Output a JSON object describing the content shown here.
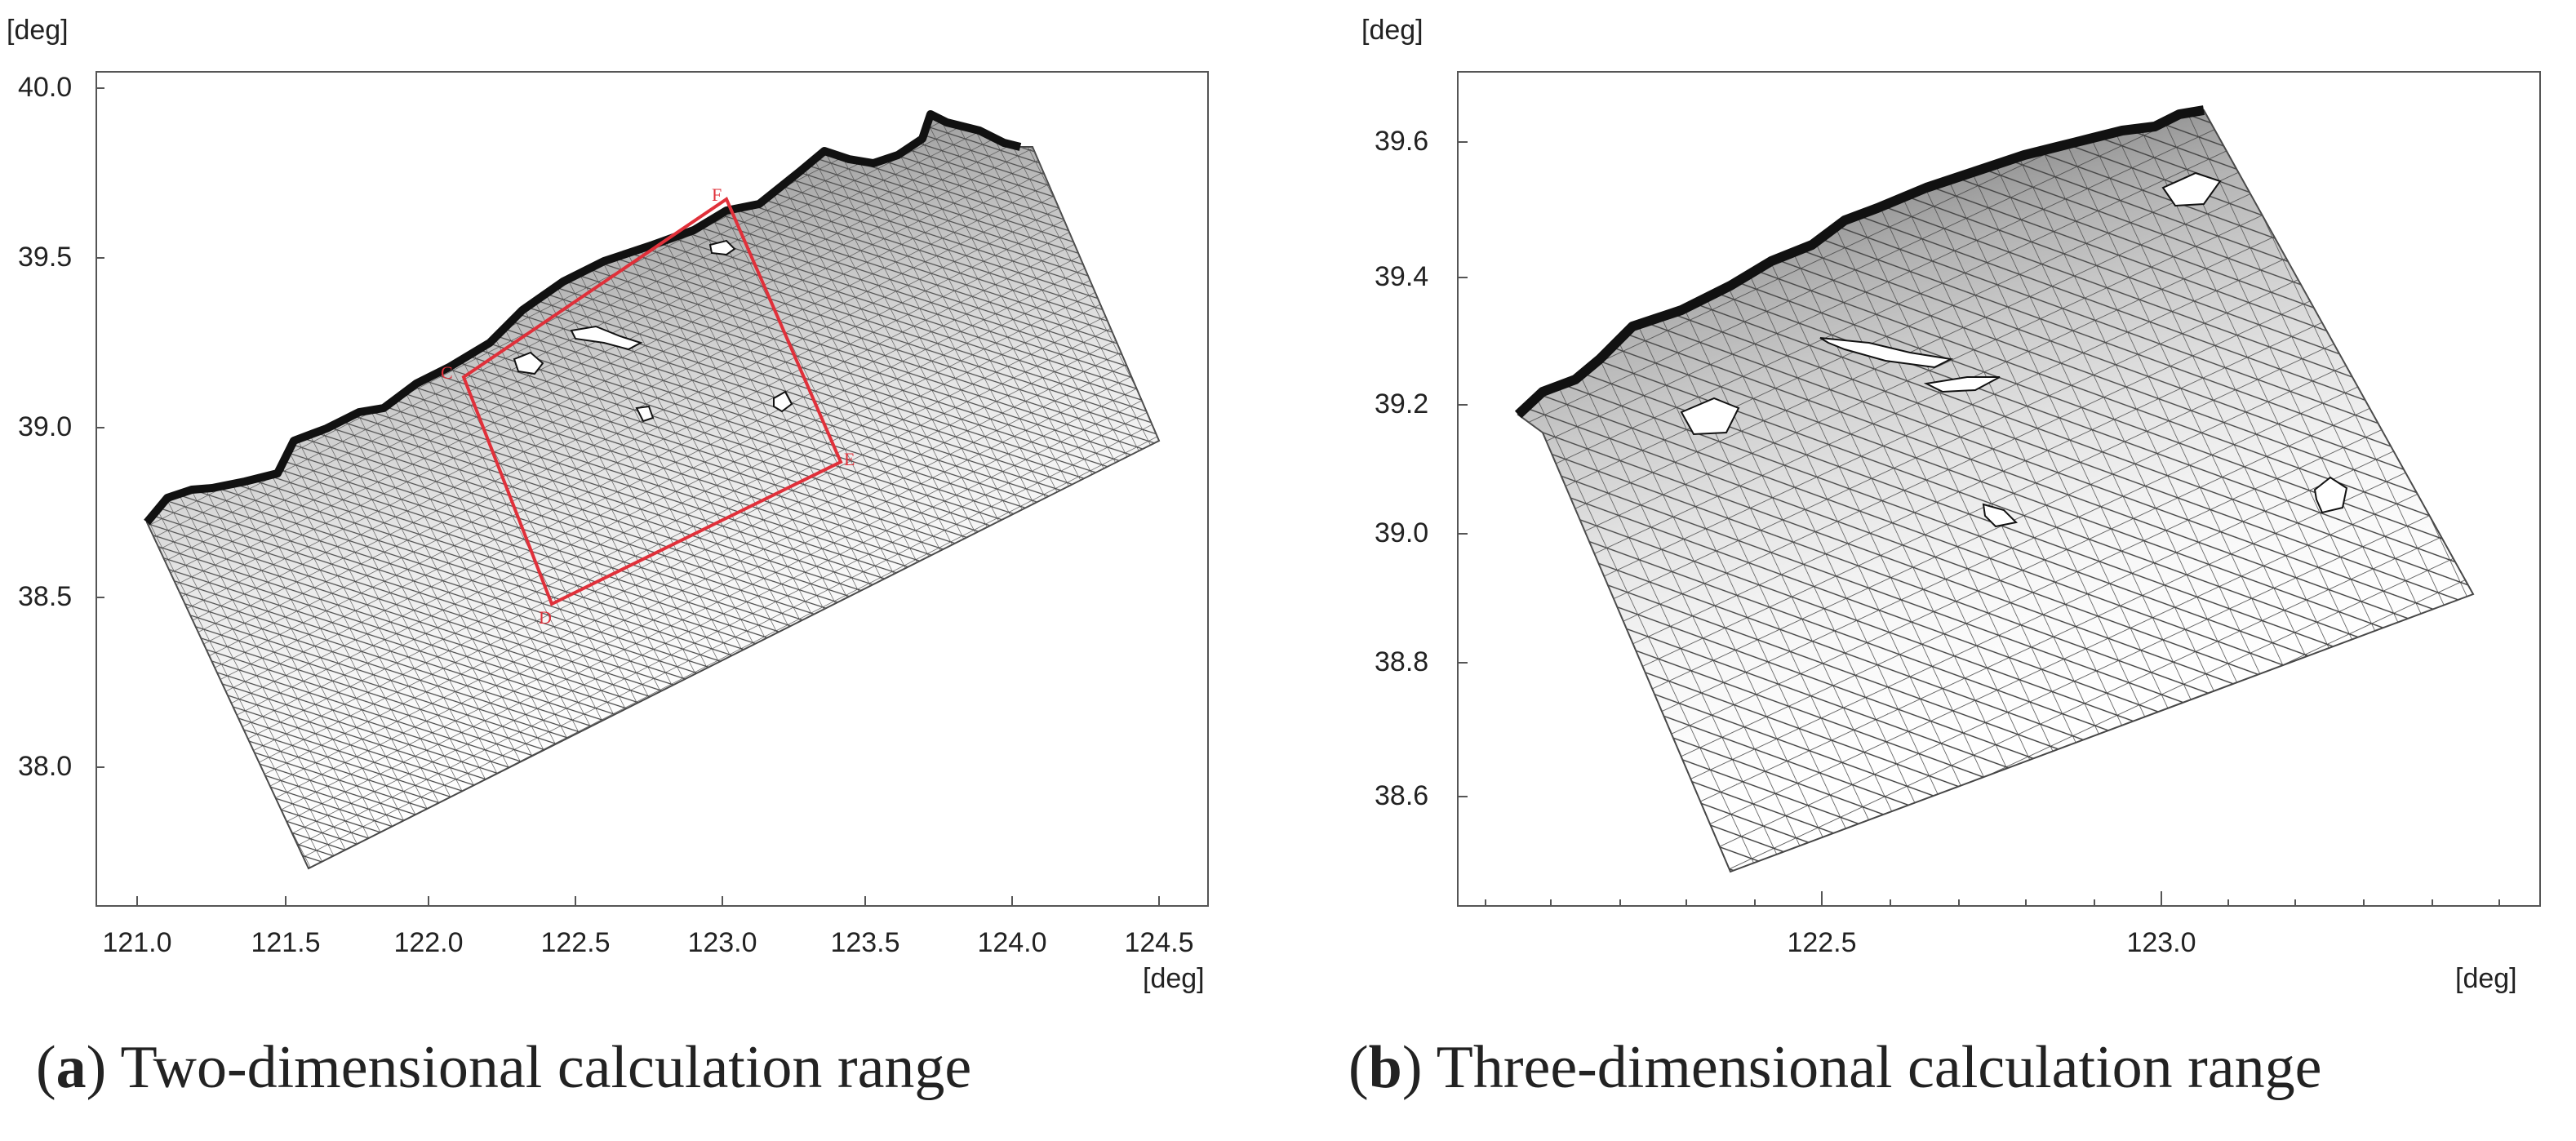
{
  "panels": [
    {
      "id": "a",
      "unit_y": "[deg]",
      "unit_x": "[deg]",
      "y_ticks": [
        "40.0",
        "39.5",
        "39.0",
        "38.5",
        "38.0"
      ],
      "x_ticks": [
        "121.0",
        "121.5",
        "122.0",
        "122.5",
        "123.0",
        "123.5",
        "124.0",
        "124.5"
      ],
      "point_labels": [
        "F",
        "C",
        "E",
        "D"
      ],
      "caption_letter": "a",
      "caption_text": "Two-dimensional calculation range",
      "colors": {
        "mesh": "#2a2a2a",
        "box": "#e0303a",
        "frame": "#555555"
      }
    },
    {
      "id": "b",
      "unit_y": "[deg]",
      "unit_x": "[deg]",
      "y_ticks": [
        "39.6",
        "39.4",
        "39.2",
        "39.0",
        "38.8",
        "38.6"
      ],
      "x_ticks": [
        "122.5",
        "123.0"
      ],
      "caption_letter": "b",
      "caption_text": "Three-dimensional calculation range",
      "colors": {
        "mesh": "#2a2a2a",
        "frame": "#555555"
      }
    }
  ]
}
